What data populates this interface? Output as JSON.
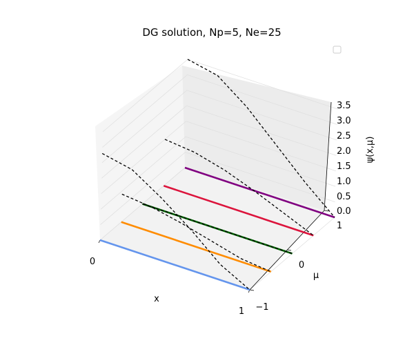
{
  "chart_data": {
    "type": "line",
    "projection": "3d",
    "title": "DG solution, Np=5, Ne=25",
    "xlabel": "x",
    "ylabel": "μ",
    "zlabel": "ψ(x,μ)",
    "xlim": [
      0,
      1
    ],
    "ylim": [
      -1,
      1
    ],
    "zlim": [
      0,
      3.5
    ],
    "x_tick_labels": [
      "0",
      "1"
    ],
    "y_tick_labels": [
      "−1",
      "0",
      "1"
    ],
    "z_tick_labels": [
      "0.0",
      "0.5",
      "1.0",
      "1.5",
      "2.0",
      "2.5",
      "3.0",
      "3.5"
    ],
    "grid": true,
    "legend": {
      "placement": "top-right",
      "entries": []
    },
    "colors": {
      "pane_floor": "#f2f2f2",
      "pane_left": "#f5f5f5",
      "pane_back": "#ececec",
      "reference_line": "#000000"
    },
    "series": [
      {
        "mu": -1.0,
        "x": [
          0,
          1
        ],
        "psi": [
          0,
          0
        ],
        "color": "#6495ED"
      },
      {
        "mu": -0.5,
        "x": [
          0,
          1
        ],
        "psi": [
          0,
          0
        ],
        "color": "#FF8C00"
      },
      {
        "mu": 0.0,
        "x": [
          0,
          1
        ],
        "psi": [
          0,
          0
        ],
        "color": "#006400"
      },
      {
        "mu": 0.5,
        "x": [
          0,
          1
        ],
        "psi": [
          0,
          0
        ],
        "color": "#DC143C"
      },
      {
        "mu": 1.0,
        "x": [
          0,
          1
        ],
        "psi": [
          0,
          0
        ],
        "color": "#800080"
      }
    ],
    "reference_curves": [
      {
        "mu": -1.0,
        "x": [
          0,
          0.2,
          0.4,
          0.6,
          0.8,
          1.0
        ],
        "psi": [
          2.8,
          2.6,
          2.0,
          1.3,
          0.5,
          0.0
        ]
      },
      {
        "mu": -0.5,
        "x": [
          0,
          0.2,
          0.4,
          0.6,
          0.8,
          1.0
        ],
        "psi": [
          0.9,
          0.8,
          0.6,
          0.35,
          0.1,
          0.0
        ]
      },
      {
        "mu": 0.0,
        "x": [
          0,
          0.2,
          0.4,
          0.6,
          0.8,
          1.0
        ],
        "psi": [
          0.0,
          0.0,
          0.0,
          0.0,
          0.0,
          0.0
        ]
      },
      {
        "mu": 0.5,
        "x": [
          0,
          0.2,
          0.4,
          0.6,
          0.8,
          1.0
        ],
        "psi": [
          1.5,
          1.4,
          1.15,
          0.8,
          0.4,
          0.0
        ]
      },
      {
        "mu": 1.0,
        "x": [
          0,
          0.2,
          0.4,
          0.6,
          0.8,
          1.0
        ],
        "psi": [
          3.5,
          3.3,
          2.6,
          1.7,
          0.8,
          0.0
        ]
      }
    ]
  }
}
